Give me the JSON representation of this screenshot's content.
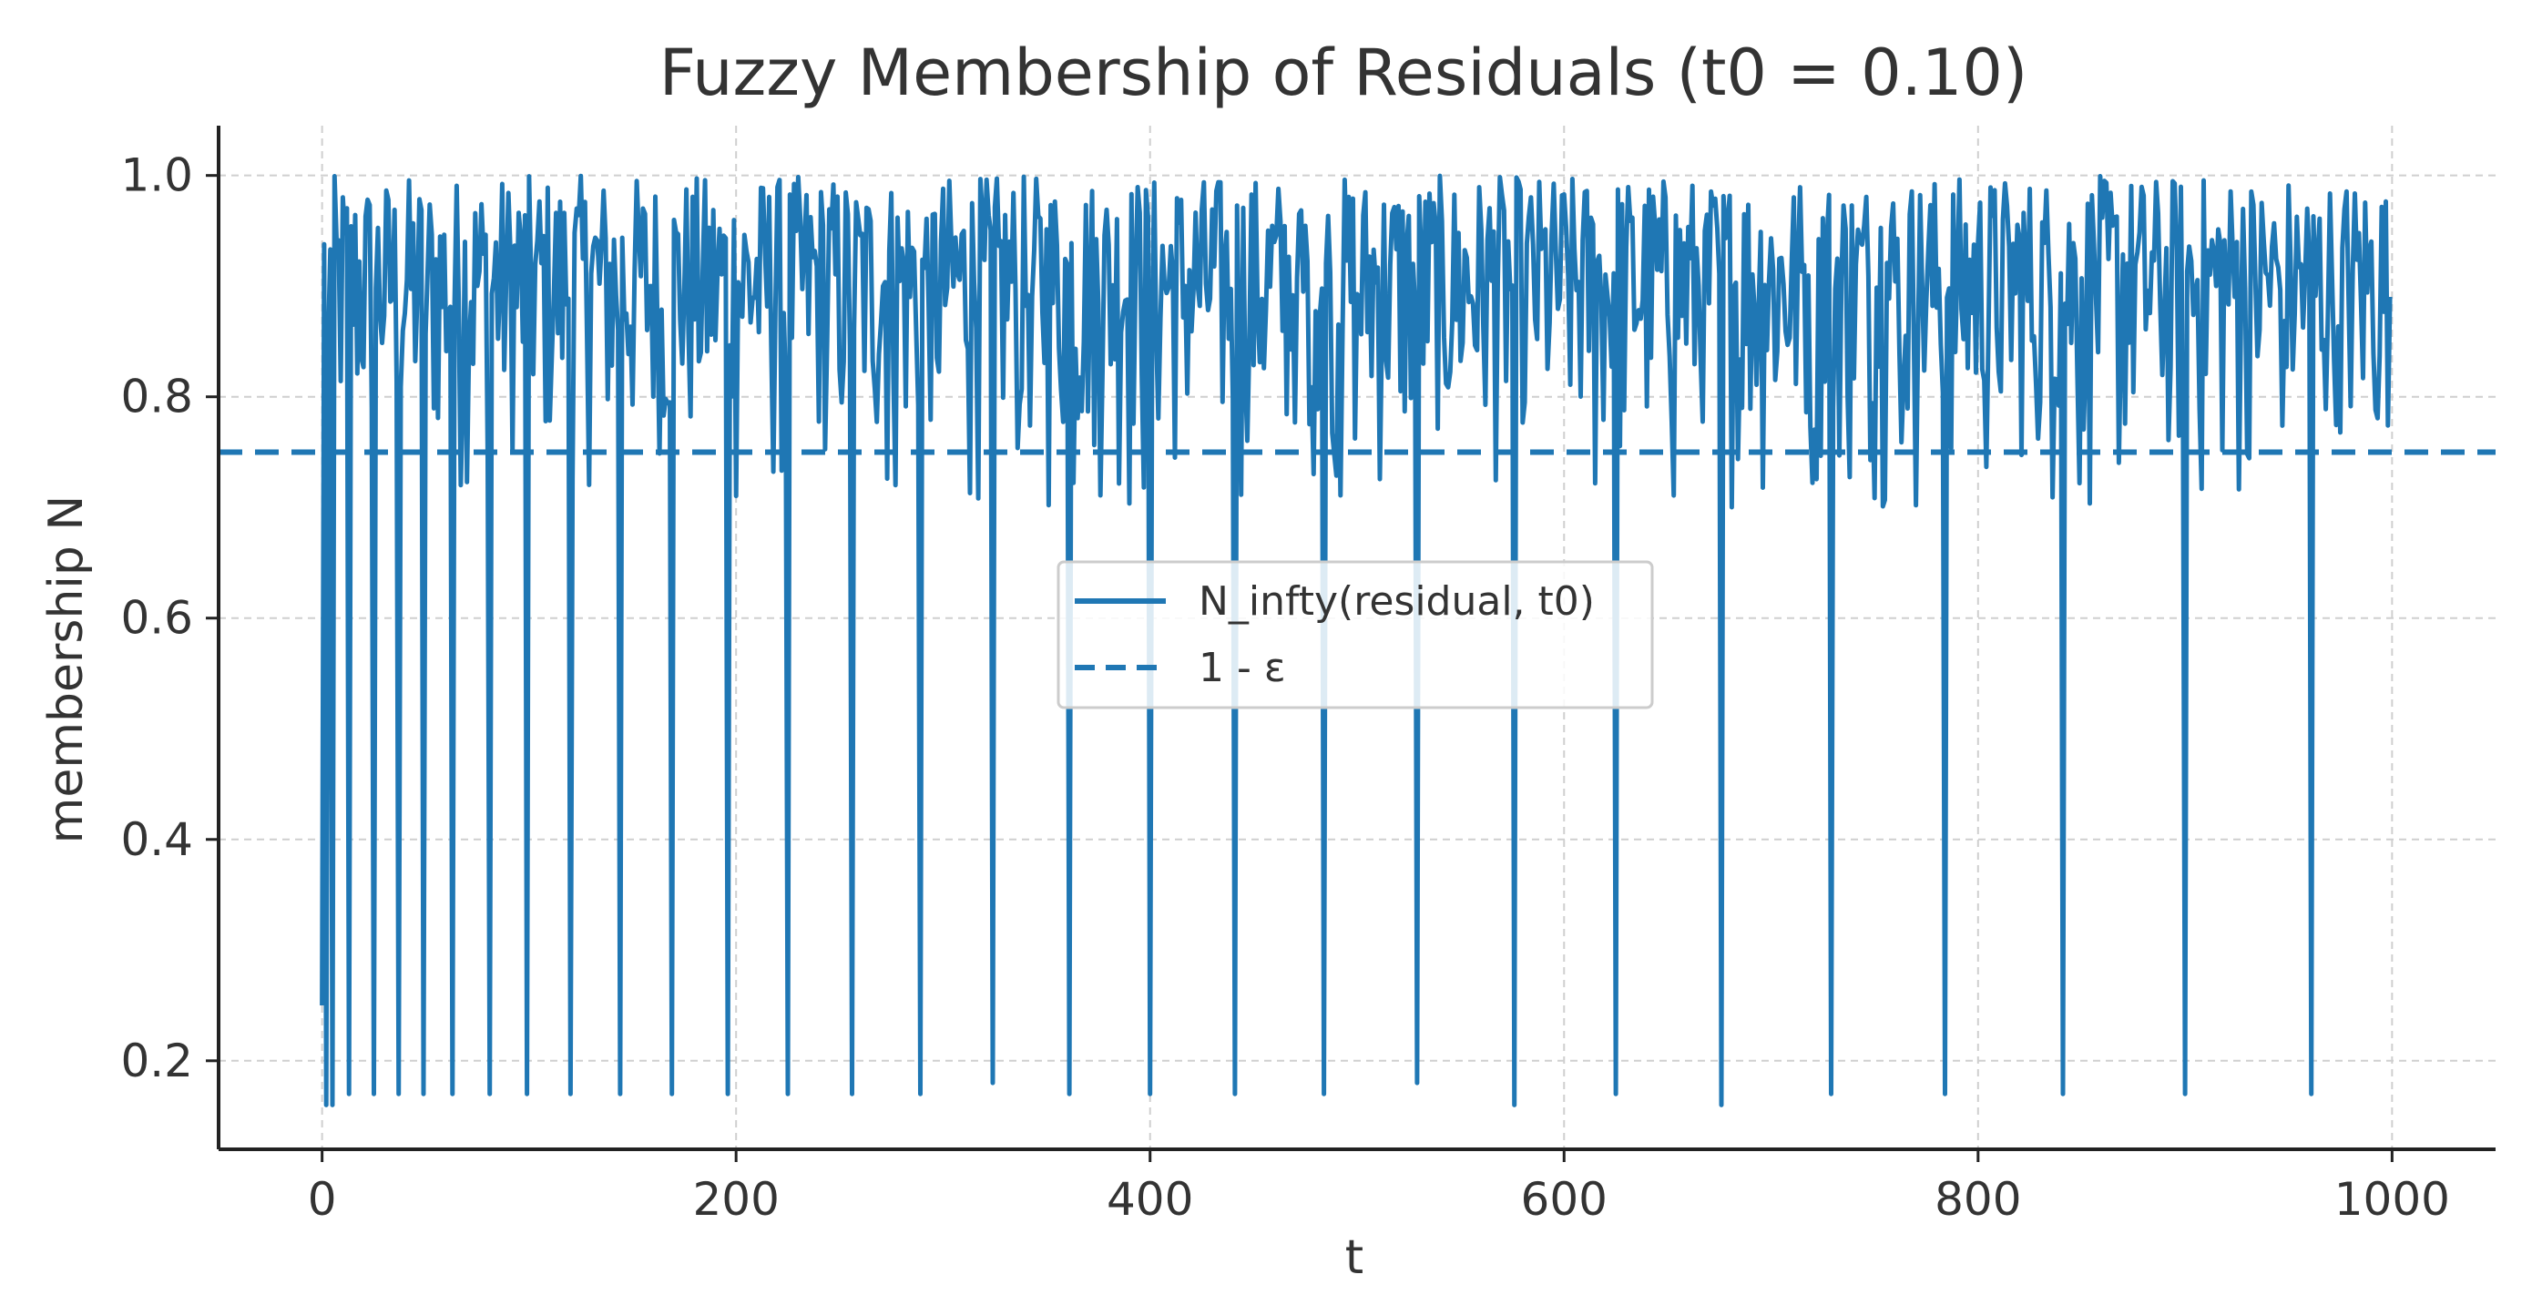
{
  "chart_data": {
    "type": "line",
    "title": "Fuzzy Membership of Residuals (t0 = 0.10)",
    "xlabel": "t",
    "ylabel": "membership N",
    "xlim": [
      -50,
      1050
    ],
    "ylim": [
      0.12,
      1.045
    ],
    "xticks": [
      0,
      200,
      400,
      600,
      800,
      1000
    ],
    "yticks": [
      0.2,
      0.4,
      0.6,
      0.8,
      1.0
    ],
    "xtick_labels": [
      "0",
      "200",
      "400",
      "600",
      "800",
      "1000"
    ],
    "ytick_labels": [
      "0.2",
      "0.4",
      "0.6",
      "0.8",
      "1.0"
    ],
    "grid": true,
    "legend_position": "center",
    "series": [
      {
        "name": "N_infty(residual, t0)",
        "style": "solid",
        "color": "#1f77b4",
        "x_range": [
          0,
          999
        ],
        "n_points": 1000,
        "y_baseline_range": [
          0.7,
          1.0
        ],
        "dips": [
          {
            "x": 2,
            "y": 0.16
          },
          {
            "x": 5,
            "y": 0.16
          },
          {
            "x": 13,
            "y": 0.17
          },
          {
            "x": 25,
            "y": 0.17
          },
          {
            "x": 37,
            "y": 0.17
          },
          {
            "x": 49,
            "y": 0.17
          },
          {
            "x": 63,
            "y": 0.17
          },
          {
            "x": 81,
            "y": 0.17
          },
          {
            "x": 99,
            "y": 0.17
          },
          {
            "x": 120,
            "y": 0.17
          },
          {
            "x": 144,
            "y": 0.17
          },
          {
            "x": 169,
            "y": 0.17
          },
          {
            "x": 196,
            "y": 0.17
          },
          {
            "x": 225,
            "y": 0.17
          },
          {
            "x": 256,
            "y": 0.17
          },
          {
            "x": 289,
            "y": 0.17
          },
          {
            "x": 324,
            "y": 0.18
          },
          {
            "x": 361,
            "y": 0.17
          },
          {
            "x": 400,
            "y": 0.17
          },
          {
            "x": 441,
            "y": 0.17
          },
          {
            "x": 484,
            "y": 0.17
          },
          {
            "x": 529,
            "y": 0.18
          },
          {
            "x": 576,
            "y": 0.16
          },
          {
            "x": 625,
            "y": 0.17
          },
          {
            "x": 676,
            "y": 0.16
          },
          {
            "x": 729,
            "y": 0.17
          },
          {
            "x": 784,
            "y": 0.17
          },
          {
            "x": 841,
            "y": 0.17
          },
          {
            "x": 900,
            "y": 0.17
          },
          {
            "x": 961,
            "y": 0.17
          }
        ],
        "start_value": 0.25
      },
      {
        "name": "1 - ε",
        "style": "dashed",
        "color": "#1f77b4",
        "y": 0.75
      }
    ]
  }
}
